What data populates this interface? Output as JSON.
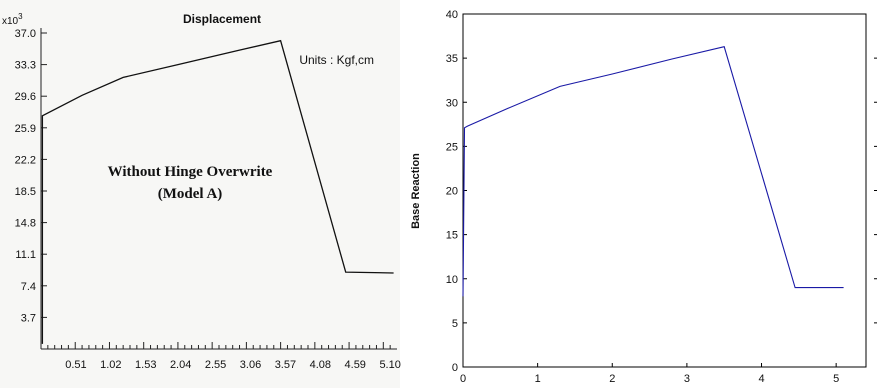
{
  "chart_data": [
    {
      "type": "line",
      "title": "Displacement",
      "y_multiplier": "x10",
      "y_multiplier_exp": "3",
      "units": "Units : Kgf,cm",
      "annotation": [
        "Without Hinge Overwrite",
        "(Model A)"
      ],
      "xlim": [
        0,
        5.2
      ],
      "ylim": [
        0,
        37.0
      ],
      "x_ticks": [
        "0.51",
        "1.02",
        "1.53",
        "2.04",
        "2.55",
        "3.06",
        "3.57",
        "4.08",
        "4.59",
        "5.10"
      ],
      "y_ticks": [
        "3.7",
        "7.4",
        "11.1",
        "14.8",
        "18.5",
        "22.2",
        "25.9",
        "29.6",
        "33.3",
        "37.0"
      ],
      "series": [
        {
          "x": [
            0.02,
            0.02,
            0.6,
            1.2,
            2.0,
            2.9,
            3.5,
            4.45,
            5.15
          ],
          "y": [
            0.6,
            27.3,
            29.7,
            31.8,
            33.3,
            35.0,
            36.1,
            9.0,
            8.9
          ]
        }
      ],
      "grid": false
    },
    {
      "type": "line",
      "ylabel": "Base Reaction",
      "xlim": [
        0,
        5.4
      ],
      "ylim": [
        0,
        40
      ],
      "x_ticks": [
        "0",
        "1",
        "2",
        "3",
        "4",
        "5"
      ],
      "y_ticks": [
        "0",
        "5",
        "10",
        "15",
        "20",
        "25",
        "30",
        "35",
        "40"
      ],
      "series": [
        {
          "color": "#1a1aa6",
          "x": [
            0.0,
            0.02,
            0.06,
            0.6,
            1.3,
            2.0,
            2.8,
            3.5,
            4.45,
            5.1
          ],
          "y": [
            8.0,
            27.1,
            27.3,
            29.3,
            31.8,
            33.2,
            34.9,
            36.3,
            9.0,
            9.0
          ]
        }
      ],
      "grid": false
    }
  ]
}
